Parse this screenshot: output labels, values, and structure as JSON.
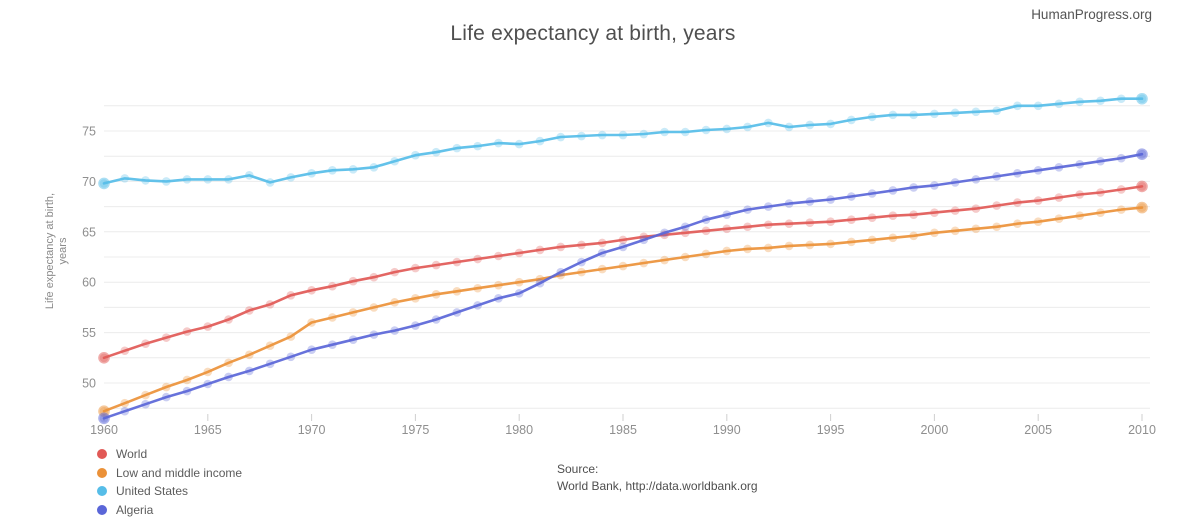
{
  "branding": "HumanProgress.org",
  "chart_data": {
    "type": "line",
    "title": "Life expectancy at birth, years",
    "ylabel_lines": [
      "Life expectancy at birth,",
      "years"
    ],
    "xlabel": "",
    "x": [
      1960,
      1961,
      1962,
      1963,
      1964,
      1965,
      1966,
      1967,
      1968,
      1969,
      1970,
      1971,
      1972,
      1973,
      1974,
      1975,
      1976,
      1977,
      1978,
      1979,
      1980,
      1981,
      1982,
      1983,
      1984,
      1985,
      1986,
      1987,
      1988,
      1989,
      1990,
      1991,
      1992,
      1993,
      1994,
      1995,
      1996,
      1997,
      1998,
      1999,
      2000,
      2001,
      2002,
      2003,
      2004,
      2005,
      2006,
      2007,
      2008,
      2009,
      2010
    ],
    "x_ticks": [
      1960,
      1965,
      1970,
      1975,
      1980,
      1985,
      1990,
      1995,
      2000,
      2005,
      2010
    ],
    "y_ticks": [
      50,
      55,
      60,
      65,
      70,
      75
    ],
    "xlim": [
      1960,
      2010
    ],
    "ylim": [
      46.5,
      79.3
    ],
    "grid": "horizontal every 2.5, light gray, no vertical gridlines",
    "legend_position": "bottom-left",
    "marker_style": "translucent round markers at every yearly point",
    "series": [
      {
        "name": "World",
        "color": "#e15956",
        "values": [
          52.5,
          53.2,
          53.9,
          54.5,
          55.1,
          55.6,
          56.3,
          57.2,
          57.8,
          58.7,
          59.2,
          59.6,
          60.1,
          60.5,
          61.0,
          61.4,
          61.7,
          62.0,
          62.3,
          62.6,
          62.9,
          63.2,
          63.5,
          63.7,
          63.9,
          64.2,
          64.5,
          64.7,
          64.9,
          65.1,
          65.3,
          65.5,
          65.7,
          65.8,
          65.9,
          66.0,
          66.2,
          66.4,
          66.6,
          66.7,
          66.9,
          67.1,
          67.3,
          67.6,
          67.9,
          68.1,
          68.4,
          68.7,
          68.9,
          69.2,
          69.5
        ]
      },
      {
        "name": "Low and middle income",
        "color": "#eb9138",
        "values": [
          47.2,
          48.0,
          48.8,
          49.6,
          50.3,
          51.1,
          52.0,
          52.8,
          53.7,
          54.6,
          56.0,
          56.5,
          57.0,
          57.5,
          58.0,
          58.4,
          58.8,
          59.1,
          59.4,
          59.7,
          60.0,
          60.3,
          60.7,
          61.0,
          61.3,
          61.6,
          61.9,
          62.2,
          62.5,
          62.8,
          63.1,
          63.3,
          63.4,
          63.6,
          63.7,
          63.8,
          64.0,
          64.2,
          64.4,
          64.6,
          64.9,
          65.1,
          65.3,
          65.5,
          65.8,
          66.0,
          66.3,
          66.6,
          66.9,
          67.2,
          67.4
        ]
      },
      {
        "name": "United States",
        "color": "#56bde8",
        "values": [
          69.8,
          70.3,
          70.1,
          70.0,
          70.2,
          70.2,
          70.2,
          70.6,
          69.9,
          70.4,
          70.8,
          71.1,
          71.2,
          71.4,
          72.0,
          72.6,
          72.9,
          73.3,
          73.5,
          73.8,
          73.7,
          74.0,
          74.4,
          74.5,
          74.6,
          74.6,
          74.7,
          74.9,
          74.9,
          75.1,
          75.2,
          75.4,
          75.8,
          75.4,
          75.6,
          75.7,
          76.1,
          76.4,
          76.6,
          76.6,
          76.7,
          76.8,
          76.9,
          77.0,
          77.5,
          77.5,
          77.7,
          77.9,
          78.0,
          78.2,
          78.2
        ]
      },
      {
        "name": "Algeria",
        "color": "#5a66d8",
        "values": [
          46.5,
          47.2,
          47.9,
          48.6,
          49.2,
          49.9,
          50.6,
          51.2,
          51.9,
          52.6,
          53.3,
          53.8,
          54.3,
          54.8,
          55.2,
          55.7,
          56.3,
          57.0,
          57.7,
          58.4,
          58.9,
          59.9,
          61.0,
          62.0,
          62.9,
          63.5,
          64.2,
          64.9,
          65.5,
          66.2,
          66.7,
          67.2,
          67.5,
          67.8,
          68.0,
          68.2,
          68.5,
          68.8,
          69.1,
          69.4,
          69.6,
          69.9,
          70.2,
          70.5,
          70.8,
          71.1,
          71.4,
          71.7,
          72.0,
          72.3,
          72.7
        ]
      }
    ],
    "source_label": "Source:",
    "source": "World Bank, http://data.worldbank.org"
  }
}
